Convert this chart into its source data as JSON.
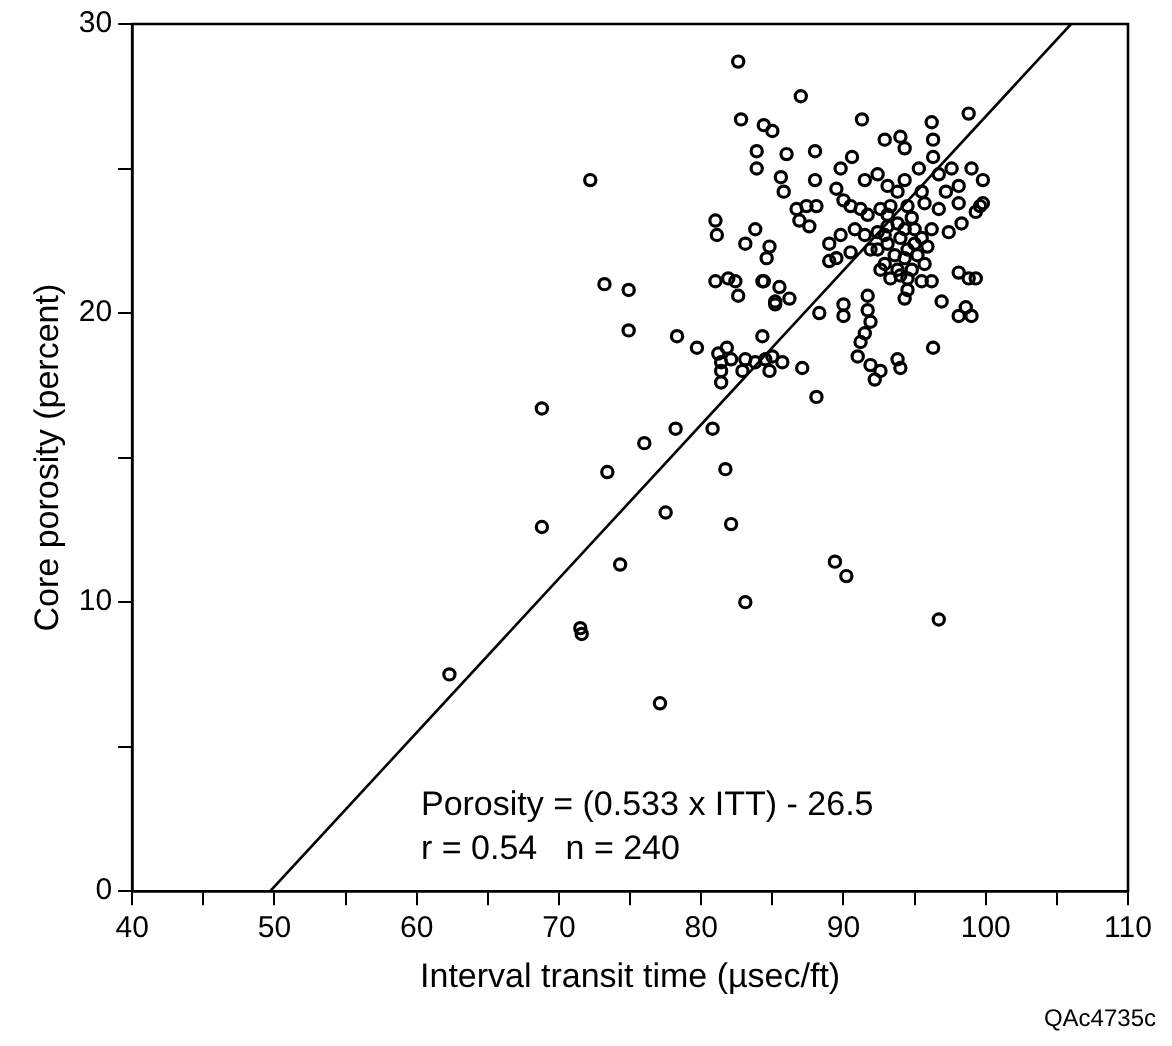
{
  "chart_data": {
    "type": "scatter",
    "xlabel": "Interval transit time (µsec/ft)",
    "ylabel": "Core porosity (percent)",
    "xlim": [
      40,
      110
    ],
    "xticks": [
      40,
      {
        "value": 45,
        "label": null
      },
      50,
      {
        "value": 55,
        "label": null
      },
      60,
      {
        "value": 65,
        "label": null
      },
      70,
      {
        "value": 75,
        "label": null
      },
      80,
      {
        "value": 85,
        "label": null
      },
      90,
      {
        "value": 95,
        "label": null
      },
      100,
      {
        "value": 105,
        "label": null
      },
      110
    ],
    "ylim": [
      0,
      30
    ],
    "yticks": [
      0,
      {
        "value": 5,
        "label": null
      },
      10,
      {
        "value": 15,
        "label": null
      },
      20,
      {
        "value": 25,
        "label": null
      },
      30
    ],
    "grid": false,
    "legend": false,
    "annotations": [
      "Porosity = (0.533 x ITT) - 26.5",
      "r = 0.54   n = 240",
      "QAc4735c"
    ],
    "series": [
      {
        "color": "#000000",
        "marker": "circle",
        "x": [
          62.3,
          68.8,
          68.8,
          73.4,
          76.0,
          78.2,
          80.8,
          81.7,
          77.5,
          82.1,
          74.3,
          83.1,
          89.4,
          90.2,
          96.7,
          88.1,
          71.5,
          71.6,
          77.1,
          82.6,
          82.8,
          84.4,
          85.0,
          83.9,
          83.9,
          72.2,
          81.0,
          81.1,
          83.8,
          83.1,
          84.8,
          84.6,
          73.2,
          74.9,
          81.0,
          81.9,
          82.4,
          82.6,
          84.4,
          85.2,
          74.9,
          78.3,
          79.7,
          81.2,
          81.8,
          81.4,
          82.1,
          83.1,
          83.8,
          84.5,
          85.0,
          82.9,
          81.4,
          81.4,
          87.0,
          91.3,
          96.2,
          98.8,
          86.0,
          88.0,
          90.6,
          92.9,
          94.0,
          94.3,
          96.3,
          96.3,
          85.6,
          85.8,
          88.0,
          89.8,
          91.5,
          92.4,
          93.1,
          94.3,
          95.3,
          96.7,
          97.6,
          99.0,
          99.8,
          98.1,
          97.2,
          95.5,
          93.8,
          89.5,
          90.0,
          86.7,
          87.4,
          88.1,
          86.9,
          87.6,
          90.5,
          91.2,
          91.7,
          92.6,
          93.3,
          94.5,
          95.7,
          96.7,
          98.1,
          99.6,
          99.8,
          99.3,
          98.3,
          97.4,
          96.2,
          95.5,
          94.3,
          93.1,
          92.4,
          91.5,
          90.8,
          89.8,
          89.0,
          89.5,
          89.0,
          90.5,
          91.9,
          93.1,
          93.6,
          94.5,
          95.2,
          95.9,
          92.9,
          93.8,
          94.8,
          93.3,
          94.5,
          95.5,
          96.2,
          98.1,
          98.8,
          99.3,
          84.3,
          85.5,
          85.2,
          86.2,
          84.3,
          88.3,
          90.0,
          90.0,
          91.7,
          91.7,
          91.9,
          91.5,
          91.2,
          91.0,
          91.9,
          92.6,
          92.2,
          93.8,
          94.0,
          94.3,
          94.5,
          96.9,
          98.1,
          98.6,
          99.0,
          96.3,
          85.7,
          87.1,
          84.8,
          93.1,
          93.8,
          94.8,
          95.0,
          94.0,
          95.0,
          92.4,
          92.9,
          94.3,
          95.7,
          92.6,
          94.0
        ],
        "values": [
          7.5,
          16.7,
          12.6,
          14.5,
          15.5,
          16.0,
          16.0,
          14.6,
          13.1,
          12.7,
          11.3,
          10.0,
          11.4,
          10.9,
          9.4,
          17.1,
          9.1,
          8.9,
          6.5,
          28.7,
          26.7,
          26.5,
          26.3,
          25.6,
          25.0,
          24.6,
          23.2,
          22.7,
          22.9,
          22.4,
          22.3,
          21.9,
          21.0,
          20.8,
          21.1,
          21.2,
          21.1,
          20.6,
          21.1,
          20.3,
          19.4,
          19.2,
          18.8,
          18.6,
          18.8,
          18.3,
          18.4,
          18.4,
          18.3,
          18.4,
          18.5,
          18.0,
          18.0,
          17.6,
          27.5,
          26.7,
          26.6,
          26.9,
          25.5,
          25.6,
          25.4,
          26.0,
          26.1,
          25.7,
          26.0,
          25.4,
          24.7,
          24.2,
          24.6,
          25.0,
          24.6,
          24.8,
          24.4,
          24.6,
          25.0,
          24.8,
          25.0,
          25.0,
          24.6,
          24.4,
          24.2,
          24.2,
          24.2,
          24.3,
          23.9,
          23.6,
          23.7,
          23.7,
          23.2,
          23.0,
          23.7,
          23.6,
          23.4,
          23.6,
          23.7,
          23.7,
          23.8,
          23.6,
          23.8,
          23.7,
          23.8,
          23.5,
          23.1,
          22.8,
          22.9,
          22.6,
          22.9,
          23.0,
          22.8,
          22.7,
          22.9,
          22.7,
          22.4,
          21.9,
          21.8,
          22.1,
          22.2,
          22.4,
          22.0,
          22.2,
          22.0,
          22.3,
          21.7,
          21.5,
          21.5,
          21.2,
          21.2,
          21.1,
          21.1,
          21.4,
          21.2,
          21.2,
          21.1,
          20.9,
          20.4,
          20.5,
          19.2,
          20.0,
          20.3,
          19.9,
          20.6,
          20.1,
          19.7,
          19.3,
          19.0,
          18.5,
          18.2,
          18.0,
          17.7,
          18.4,
          18.1,
          20.5,
          20.8,
          20.4,
          19.9,
          20.2,
          19.9,
          18.8,
          18.3,
          18.1,
          18.0,
          23.4,
          23.1,
          23.3,
          22.9,
          22.6,
          22.4,
          22.2,
          22.7,
          21.9,
          21.7,
          21.5,
          21.3
        ]
      },
      {
        "type": "line",
        "color": "#000000",
        "marker": "none",
        "x": [
          49.7,
          106.0
        ],
        "values": [
          0,
          30
        ]
      }
    ]
  }
}
